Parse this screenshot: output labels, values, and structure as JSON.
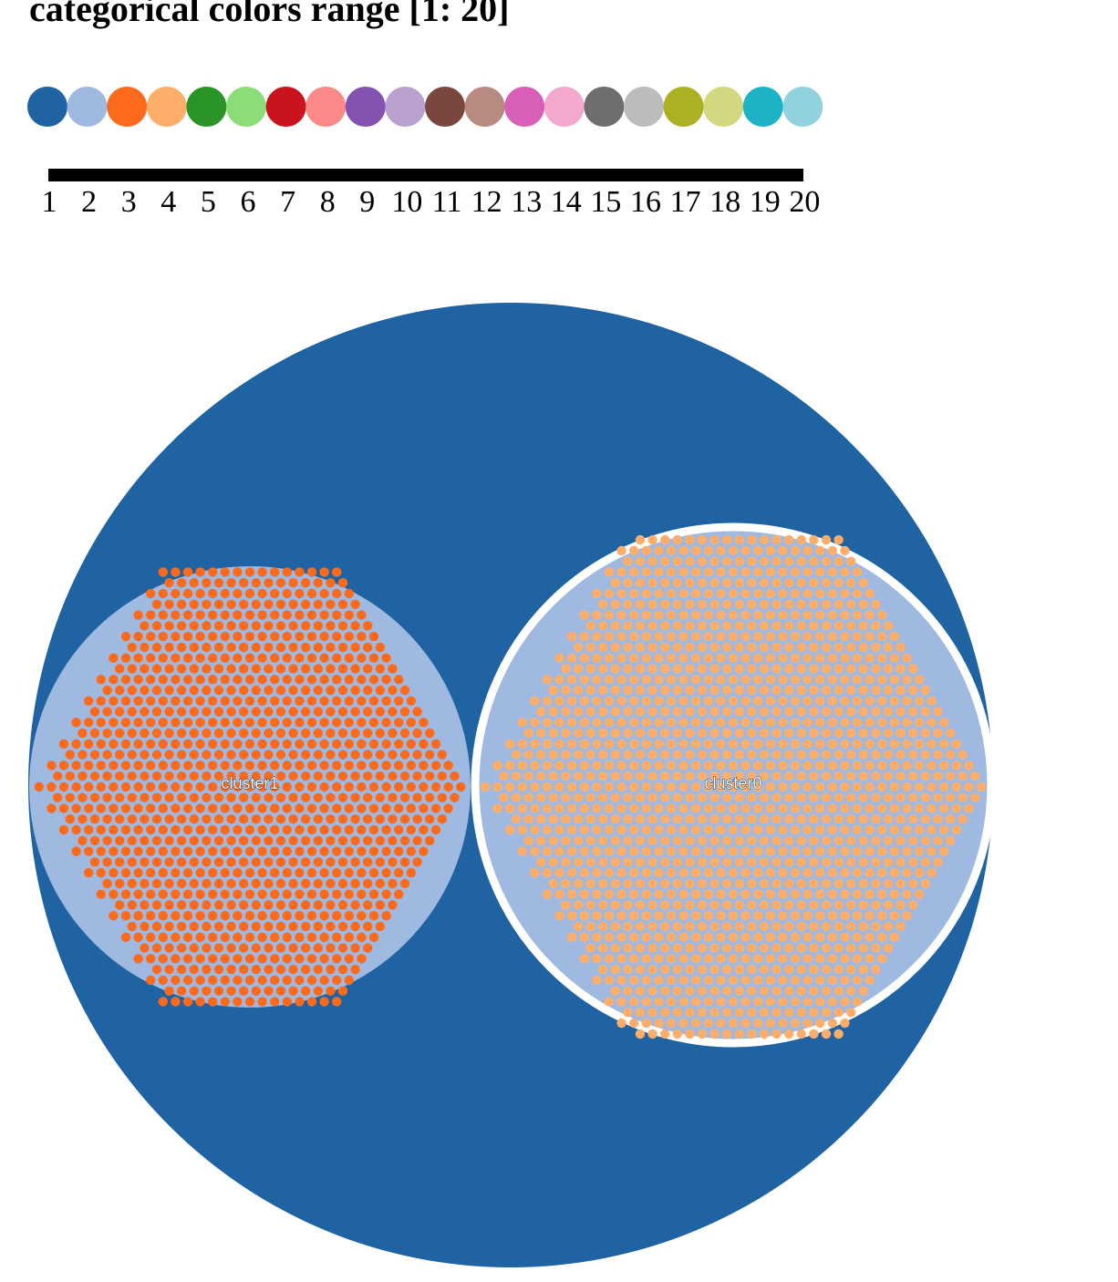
{
  "title": "categorical colors range [1: 20]",
  "legend": {
    "colors": [
      "#1f63a3",
      "#9fb9e1",
      "#fd6a1c",
      "#fdae6b",
      "#2a9427",
      "#8cdc78",
      "#c9141f",
      "#fc8989",
      "#8453b2",
      "#b9a2cf",
      "#7a473f",
      "#b88b82",
      "#d85eb7",
      "#f3a8ce",
      "#6e6e6e",
      "#bcbcbc",
      "#abb123",
      "#d2d780",
      "#1eb2c7",
      "#92d2de"
    ],
    "ticks": [
      "1",
      "2",
      "3",
      "4",
      "5",
      "6",
      "7",
      "8",
      "9",
      "10",
      "11",
      "12",
      "13",
      "14",
      "15",
      "16",
      "17",
      "18",
      "19",
      "20"
    ]
  },
  "diagram": {
    "root_color": "#1f63a3",
    "clusters": [
      {
        "label": "cluster1",
        "circle_color": "#9fb9e1",
        "dot_color": "#fd6a1c",
        "selected": false
      },
      {
        "label": "cluster0",
        "circle_color": "#9fb9e1",
        "dot_color": "#fdae6b",
        "selected": true
      }
    ]
  }
}
